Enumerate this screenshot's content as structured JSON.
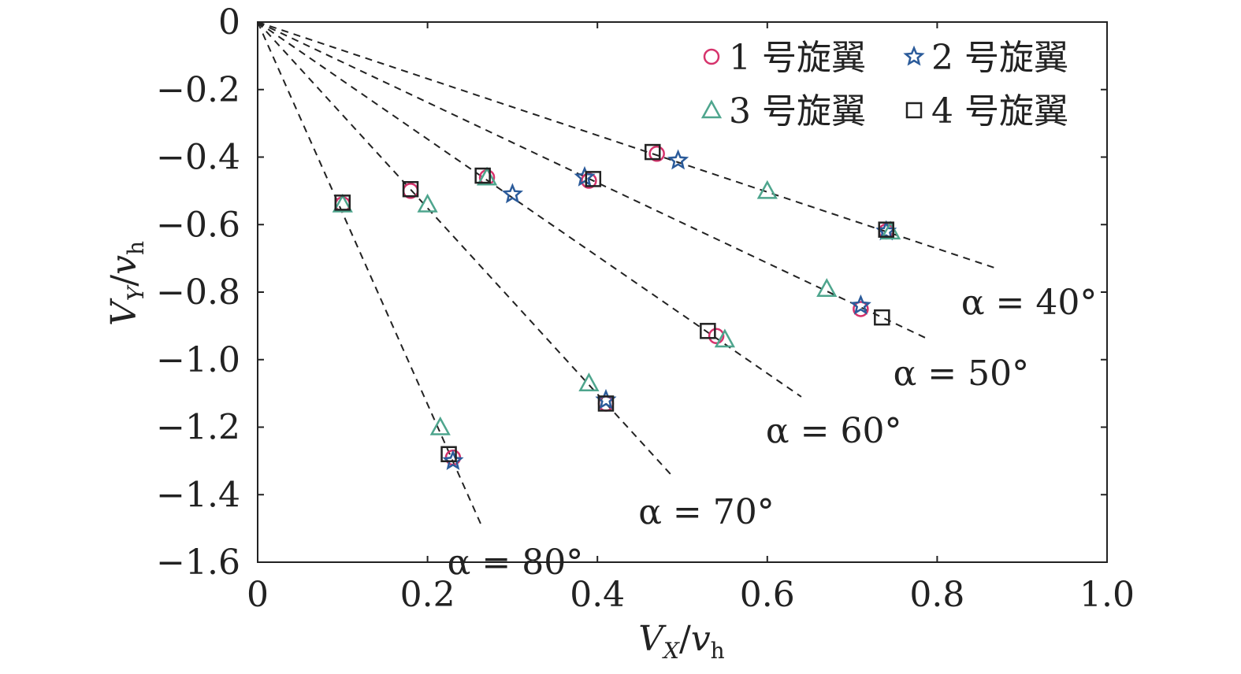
{
  "chart_data": {
    "type": "scatter",
    "xlabel": "V_X/v_h",
    "ylabel": "V_Y/v_h",
    "xlabel_parts": {
      "main": "V",
      "sub": "X",
      "sep": "/",
      "tail": "v",
      "tail_sub": "h"
    },
    "ylabel_parts": {
      "main": "V",
      "sub": "Y",
      "sep": "/",
      "tail": "v",
      "tail_sub": "h"
    },
    "xlim": [
      0,
      1.0
    ],
    "ylim": [
      -1.6,
      0
    ],
    "x_ticks": [
      0,
      0.2,
      0.4,
      0.6,
      0.8,
      1.0
    ],
    "y_ticks": [
      0,
      -0.2,
      -0.4,
      -0.6,
      -0.8,
      -1.0,
      -1.2,
      -1.4,
      -1.6
    ],
    "x_tick_labels": [
      "0",
      "0.2",
      "0.4",
      "0.6",
      "0.8",
      "1.0"
    ],
    "y_tick_labels": [
      "0",
      "−0.2",
      "−0.4",
      "−0.6",
      "−0.8",
      "−1.0",
      "−1.2",
      "−1.4",
      "−1.6"
    ],
    "grid": false,
    "legend_position": "top-right",
    "reference_lines": [
      {
        "label": "α = 40°",
        "x_end": 0.87,
        "y_end": -0.73
      },
      {
        "label": "α = 50°",
        "x_end": 0.79,
        "y_end": -0.94
      },
      {
        "label": "α = 60°",
        "x_end": 0.64,
        "y_end": -1.11
      },
      {
        "label": "α = 70°",
        "x_end": 0.49,
        "y_end": -1.35
      },
      {
        "label": "α = 80°",
        "x_end": 0.265,
        "y_end": -1.5
      }
    ],
    "series": [
      {
        "name": "1 号旋翼",
        "marker": "circle",
        "color": "#d6336c",
        "points": [
          [
            0.1,
            -0.54
          ],
          [
            0.18,
            -0.5
          ],
          [
            0.27,
            -0.46
          ],
          [
            0.39,
            -0.47
          ],
          [
            0.47,
            -0.39
          ],
          [
            0.23,
            -1.29
          ],
          [
            0.41,
            -1.13
          ],
          [
            0.54,
            -0.93
          ],
          [
            0.71,
            -0.85
          ],
          [
            0.74,
            -0.62
          ]
        ]
      },
      {
        "name": "2 号旋翼",
        "marker": "star",
        "color": "#2b5b9a",
        "points": [
          [
            0.23,
            -1.3
          ],
          [
            0.41,
            -1.12
          ],
          [
            0.3,
            -0.51
          ],
          [
            0.385,
            -0.46
          ],
          [
            0.495,
            -0.41
          ],
          [
            0.71,
            -0.84
          ],
          [
            0.74,
            -0.62
          ]
        ]
      },
      {
        "name": "3 号旋翼",
        "marker": "triangle",
        "color": "#4ea58d",
        "points": [
          [
            0.215,
            -1.2
          ],
          [
            0.39,
            -1.07
          ],
          [
            0.2,
            -0.54
          ],
          [
            0.27,
            -0.46
          ],
          [
            0.55,
            -0.94
          ],
          [
            0.67,
            -0.79
          ],
          [
            0.6,
            -0.5
          ],
          [
            0.745,
            -0.62
          ],
          [
            0.1,
            -0.54
          ]
        ]
      },
      {
        "name": "4 号旋翼",
        "marker": "square",
        "color": "#222222",
        "points": [
          [
            0.1,
            -0.535
          ],
          [
            0.18,
            -0.495
          ],
          [
            0.265,
            -0.455
          ],
          [
            0.395,
            -0.465
          ],
          [
            0.465,
            -0.385
          ],
          [
            0.225,
            -1.28
          ],
          [
            0.41,
            -1.13
          ],
          [
            0.53,
            -0.915
          ],
          [
            0.735,
            -0.875
          ],
          [
            0.74,
            -0.615
          ]
        ]
      }
    ]
  }
}
